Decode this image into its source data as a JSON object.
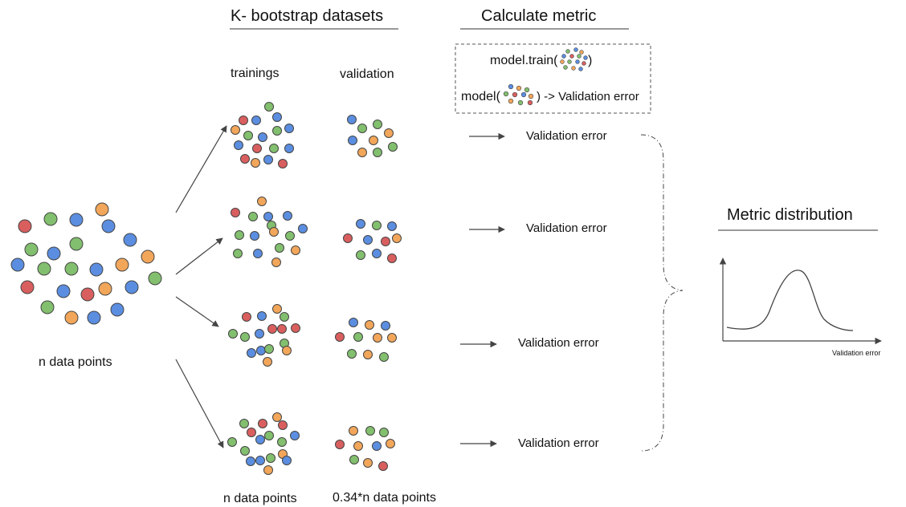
{
  "headings": {
    "bootstrap": "K- bootstrap datasets",
    "calculate": "Calculate metric",
    "distribution": "Metric distribution"
  },
  "columns": {
    "trainings": "trainings",
    "validation": "validation"
  },
  "source_label": "n data points",
  "footer": {
    "train_count": "n data points",
    "val_count": "0.34*n data points"
  },
  "legend_box": {
    "train_prefix": "model.train(",
    "train_suffix": ")",
    "model_prefix": "model(",
    "model_suffix": ") -> Validation error"
  },
  "rows": [
    {
      "result": "Validation error"
    },
    {
      "result": "Validation error"
    },
    {
      "result": "Validation error"
    },
    {
      "result": "Validation error"
    }
  ],
  "plot": {
    "xlabel": "Validation error"
  },
  "colors": {
    "red": "#d95f5f",
    "green": "#82bf6e",
    "blue": "#5b8ee0",
    "orange": "#f2a65a",
    "stroke": "#444444",
    "line": "#555555"
  }
}
